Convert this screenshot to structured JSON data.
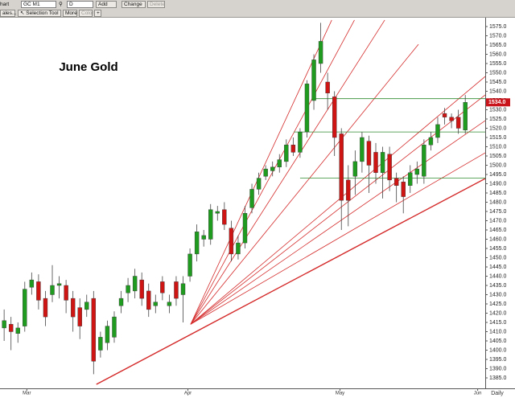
{
  "toolbar": {
    "row1": [
      "hart",
      "GC M1",
      "D",
      "Add",
      "Change",
      "Delete"
    ],
    "row2": [
      "ales...",
      "Selection Tool",
      "More",
      "Color",
      "+"
    ]
  },
  "chart_data": {
    "type": "candlestick",
    "title": "June Gold",
    "period": "Daily",
    "up_color": "#1f9b1f",
    "down_color": "#cf1414",
    "x": [
      0,
      1,
      2,
      3,
      4,
      5,
      6,
      7,
      8,
      9,
      10,
      11,
      12,
      13,
      14,
      15,
      16,
      17,
      18,
      19,
      20,
      21,
      22,
      23,
      24,
      25,
      26,
      27,
      28,
      29,
      30,
      31,
      32,
      33,
      34,
      35,
      36,
      37,
      38,
      39,
      40,
      41,
      42,
      43,
      44,
      45,
      46,
      47,
      48,
      49,
      50,
      51,
      52,
      53,
      54,
      55,
      56,
      57,
      58,
      59,
      60,
      61,
      62,
      63,
      64,
      65,
      66,
      67
    ],
    "open": [
      1412,
      1414,
      1409,
      1413,
      1434,
      1437,
      1428,
      1430,
      1435,
      1435,
      1428,
      1423,
      1422,
      1428,
      1400,
      1404,
      1407,
      1424,
      1431,
      1432,
      1438,
      1432,
      1424,
      1437,
      1424,
      1437,
      1430,
      1440,
      1452,
      1460,
      1460,
      1474,
      1476,
      1466,
      1452,
      1458,
      1477,
      1487,
      1494,
      1497,
      1499,
      1502,
      1511,
      1507,
      1518,
      1535,
      1555,
      1545,
      1537,
      1517,
      1492,
      1494,
      1502,
      1513,
      1507,
      1496,
      1506,
      1493,
      1491,
      1489,
      1495,
      1494,
      1511,
      1515,
      1528,
      1526,
      1526,
      1519
    ],
    "high": [
      1422,
      1418,
      1415,
      1437,
      1442,
      1441,
      1432,
      1446,
      1440,
      1438,
      1432,
      1428,
      1430,
      1432,
      1410,
      1416,
      1421,
      1432,
      1439,
      1444,
      1442,
      1436,
      1430,
      1440,
      1430,
      1440,
      1440,
      1455,
      1468,
      1465,
      1479,
      1478,
      1480,
      1470,
      1462,
      1478,
      1490,
      1496,
      1500,
      1502,
      1506,
      1514,
      1515,
      1520,
      1546,
      1560,
      1577,
      1550,
      1540,
      1520,
      1500,
      1508,
      1518,
      1516,
      1512,
      1510,
      1510,
      1496,
      1494,
      1500,
      1502,
      1514,
      1518,
      1526,
      1531,
      1528,
      1530,
      1538
    ],
    "low": [
      1405,
      1400,
      1404,
      1410,
      1430,
      1422,
      1413,
      1426,
      1428,
      1420,
      1410,
      1406,
      1418,
      1387,
      1396,
      1400,
      1404,
      1420,
      1426,
      1428,
      1424,
      1418,
      1420,
      1427,
      1420,
      1424,
      1415,
      1437,
      1448,
      1456,
      1457,
      1470,
      1465,
      1448,
      1449,
      1455,
      1474,
      1484,
      1492,
      1494,
      1496,
      1499,
      1505,
      1504,
      1515,
      1530,
      1550,
      1530,
      1505,
      1465,
      1467,
      1484,
      1496,
      1485,
      1490,
      1482,
      1486,
      1480,
      1474,
      1485,
      1490,
      1490,
      1508,
      1512,
      1522,
      1520,
      1517,
      1517
    ],
    "close": [
      1416,
      1410,
      1412,
      1433,
      1438,
      1427,
      1418,
      1435,
      1436,
      1427,
      1418,
      1413,
      1426,
      1394,
      1407,
      1413,
      1418,
      1428,
      1435,
      1440,
      1428,
      1422,
      1426,
      1431,
      1426,
      1428,
      1436,
      1452,
      1464,
      1462,
      1476,
      1475,
      1468,
      1452,
      1458,
      1474,
      1487,
      1493,
      1498,
      1499,
      1503,
      1511,
      1507,
      1518,
      1544,
      1557,
      1567,
      1539,
      1515,
      1481,
      1481,
      1502,
      1515,
      1500,
      1496,
      1507,
      1492,
      1489,
      1483,
      1496,
      1498,
      1511,
      1515,
      1522,
      1526,
      1524,
      1520,
      1534
    ],
    "last_price": {
      "value": 1534,
      "label": "1534.0"
    },
    "lines": [
      {
        "color": "#d42a2a",
        "x": [
          27.1,
          47.6
        ],
        "y": [
          1414,
          1578.5
        ]
      },
      {
        "color": "#d42a2a",
        "x": [
          27.1,
          50.9
        ],
        "y": [
          1414,
          1578.5
        ]
      },
      {
        "color": "#d42a2a",
        "x": [
          27.1,
          55.3
        ],
        "y": [
          1414,
          1578.5
        ]
      },
      {
        "color": "#d42a2a",
        "x": [
          27.1,
          60.2
        ],
        "y": [
          1414,
          1565.4
        ]
      },
      {
        "color": "#d42a2a",
        "x": [
          27.1,
          69.9
        ],
        "y": [
          1414,
          1548
        ]
      },
      {
        "color": "#d42a2a",
        "x": [
          27.1,
          69.9
        ],
        "y": [
          1414,
          1538
        ]
      },
      {
        "color": "#d42a2a",
        "x": [
          27.1,
          69.9
        ],
        "y": [
          1414,
          1524.1
        ]
      },
      {
        "color": "#d42a2a",
        "x": [
          27.1,
          69.9
        ],
        "y": [
          1414,
          1506.7
        ]
      },
      {
        "color": "#d42a2a",
        "x": [
          13.4,
          69.9
        ],
        "y": [
          1381.5,
          1492.8
        ]
      },
      {
        "color": "#2f8a2f",
        "x": [
          44.7,
          69.9
        ],
        "y": [
          1536,
          1536
        ]
      },
      {
        "color": "#2f8a2f",
        "x": [
          42.1,
          69.9
        ],
        "y": [
          1518,
          1518
        ]
      },
      {
        "color": "#2f8a2f",
        "x": [
          43.0,
          69.9
        ],
        "y": [
          1493,
          1493
        ]
      }
    ],
    "xlim": [
      -0.6,
      69.9
    ],
    "xticks": [
      {
        "value": 3.3,
        "label": "Mar"
      },
      {
        "value": 26.7,
        "label": "Apr"
      },
      {
        "value": 48.8,
        "label": "May"
      },
      {
        "value": 68.8,
        "label": "Jun"
      }
    ],
    "ylim": [
      1380,
      1580
    ],
    "yticks": [
      {
        "value": 1385,
        "label": "1385.0"
      },
      {
        "value": 1390,
        "label": "1390.0"
      },
      {
        "value": 1395,
        "label": "1395.0"
      },
      {
        "value": 1400,
        "label": "1400.0"
      },
      {
        "value": 1405,
        "label": "1405.0"
      },
      {
        "value": 1410,
        "label": "1410.0"
      },
      {
        "value": 1415,
        "label": "1415.0"
      },
      {
        "value": 1420,
        "label": "1420.0"
      },
      {
        "value": 1425,
        "label": "1425.0"
      },
      {
        "value": 1430,
        "label": "1430.0"
      },
      {
        "value": 1435,
        "label": "1435.0"
      },
      {
        "value": 1440,
        "label": "1440.0"
      },
      {
        "value": 1445,
        "label": "1445.0"
      },
      {
        "value": 1450,
        "label": "1450.0"
      },
      {
        "value": 1455,
        "label": "1455.0"
      },
      {
        "value": 1460,
        "label": "1460.0"
      },
      {
        "value": 1465,
        "label": "1465.0"
      },
      {
        "value": 1470,
        "label": "1470.0"
      },
      {
        "value": 1475,
        "label": "1475.0"
      },
      {
        "value": 1480,
        "label": "1480.0"
      },
      {
        "value": 1485,
        "label": "1485.0"
      },
      {
        "value": 1490,
        "label": "1490.0"
      },
      {
        "value": 1495,
        "label": "1495.0"
      },
      {
        "value": 1500,
        "label": "1500.0"
      },
      {
        "value": 1505,
        "label": "1505.0"
      },
      {
        "value": 1510,
        "label": "1510.0"
      },
      {
        "value": 1515,
        "label": "1515.0"
      },
      {
        "value": 1520,
        "label": "1520.0"
      },
      {
        "value": 1525,
        "label": "1525.0"
      },
      {
        "value": 1530,
        "label": "1530.0"
      },
      {
        "value": 1535,
        "label": "1535.0"
      },
      {
        "value": 1540,
        "label": "1540.0"
      },
      {
        "value": 1545,
        "label": "1545.0"
      },
      {
        "value": 1550,
        "label": "1550.0"
      },
      {
        "value": 1555,
        "label": "1555.0"
      },
      {
        "value": 1560,
        "label": "1560.0"
      },
      {
        "value": 1565,
        "label": "1565.0"
      },
      {
        "value": 1570,
        "label": "1570.0"
      },
      {
        "value": 1575,
        "label": "1575.0"
      }
    ]
  }
}
